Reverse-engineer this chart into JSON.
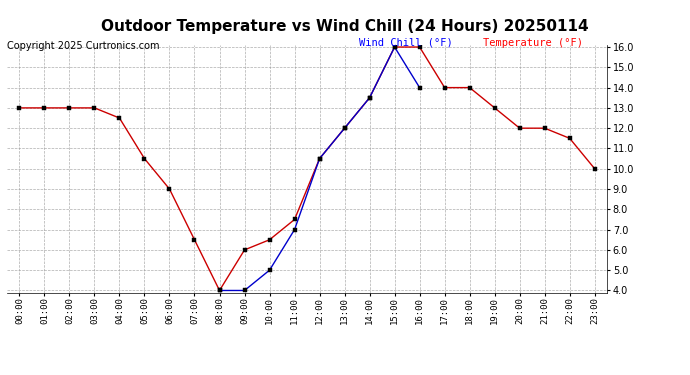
{
  "title": "Outdoor Temperature vs Wind Chill (24 Hours) 20250114",
  "copyright": "Copyright 2025 Curtronics.com",
  "hours": [
    "00:00",
    "01:00",
    "02:00",
    "03:00",
    "04:00",
    "05:00",
    "06:00",
    "07:00",
    "08:00",
    "09:00",
    "10:00",
    "11:00",
    "12:00",
    "13:00",
    "14:00",
    "15:00",
    "16:00",
    "17:00",
    "18:00",
    "19:00",
    "20:00",
    "21:00",
    "22:00",
    "23:00"
  ],
  "temperature": [
    13.0,
    13.0,
    13.0,
    13.0,
    12.5,
    10.5,
    9.0,
    6.5,
    4.0,
    6.0,
    6.5,
    7.5,
    10.5,
    12.0,
    13.5,
    16.0,
    16.0,
    14.0,
    14.0,
    13.0,
    12.0,
    12.0,
    11.5,
    10.0
  ],
  "wind_chill": [
    null,
    null,
    null,
    null,
    null,
    null,
    null,
    null,
    4.0,
    4.0,
    5.0,
    7.0,
    10.5,
    12.0,
    13.5,
    16.0,
    14.0,
    null,
    null,
    null,
    null,
    null,
    null,
    null
  ],
  "temp_color": "#cc0000",
  "wind_chill_color": "#0000cc",
  "legend_wind_chill_color": "#0000ff",
  "legend_temp_color": "#ff0000",
  "ylim_min": 4.0,
  "ylim_max": 16.0,
  "ytick_interval": 1.0,
  "bg_color": "#ffffff",
  "grid_color": "#999999",
  "title_fontsize": 11,
  "copyright_fontsize": 7,
  "legend_fontsize": 7.5
}
